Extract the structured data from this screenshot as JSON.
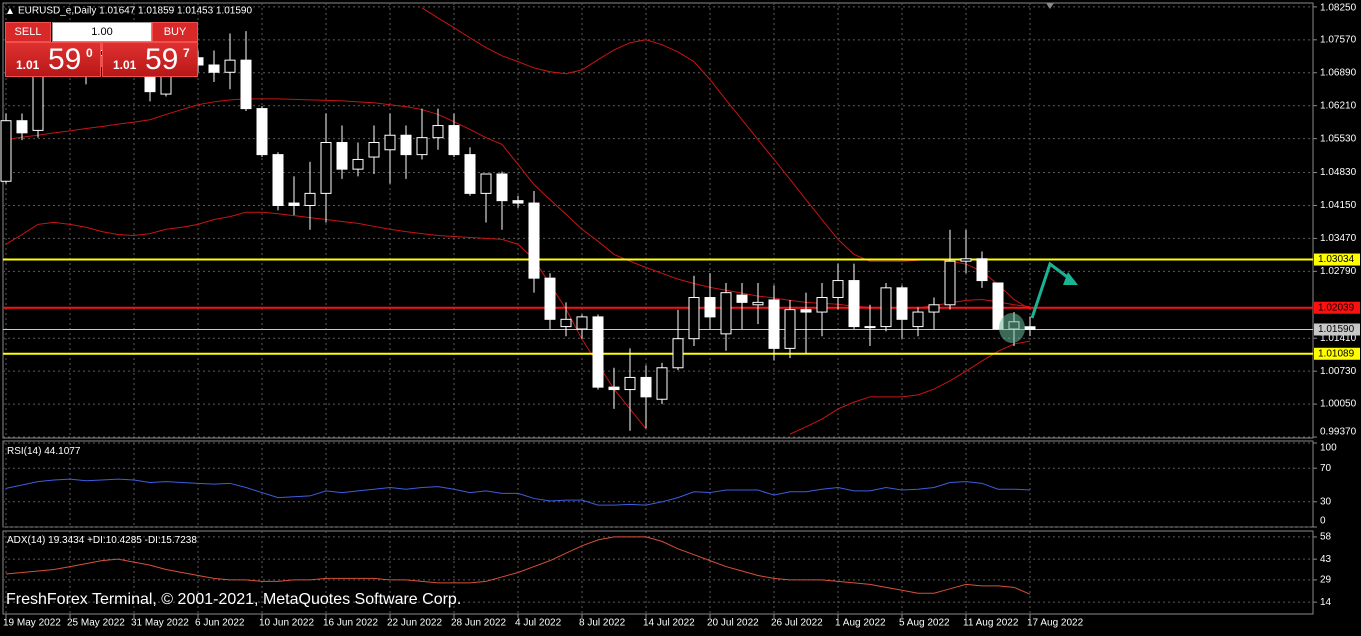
{
  "chart_data": [
    {
      "type": "candlestick",
      "title": "EURUSD_e,Daily 1.01647 1.01859 1.01453 1.01590",
      "categories": [
        "19 May 2022",
        null,
        null,
        null,
        "25 May 2022",
        null,
        null,
        null,
        "31 May 2022",
        null,
        null,
        null,
        "6 Jun 2022",
        null,
        null,
        null,
        "10 Jun 2022",
        null,
        null,
        null,
        "16 Jun 2022",
        null,
        null,
        null,
        "22 Jun 2022",
        null,
        null,
        null,
        "28 Jun 2022",
        null,
        null,
        null,
        "4 Jul 2022",
        null,
        null,
        null,
        "8 Jul 2022",
        null,
        null,
        null,
        "14 Jul 2022",
        null,
        null,
        null,
        "20 Jul 2022",
        null,
        null,
        null,
        "26 Jul 2022",
        null,
        null,
        null,
        "1 Aug 2022",
        null,
        null,
        null,
        "5 Aug 2022",
        null,
        null,
        null,
        "11 Aug 2022",
        null,
        null,
        null,
        "17 Aug 2022"
      ],
      "open": [
        1.0465,
        1.059,
        1.057,
        1.069,
        1.0735,
        1.0685,
        1.0725,
        1.0735,
        1.0775,
        1.0735,
        1.0645,
        1.0745,
        1.072,
        1.0705,
        1.069,
        1.0715,
        1.0615,
        1.052,
        1.042,
        1.0415,
        1.044,
        1.0545,
        1.049,
        1.0515,
        1.053,
        1.056,
        1.052,
        1.0555,
        1.058,
        1.052,
        1.044,
        1.048,
        1.0425,
        1.042,
        1.0265,
        1.0165,
        1.016,
        1.0185,
        1.004,
        1.0035,
        1.006,
        1.0015,
        1.008,
        1.014,
        1.0225,
        1.015,
        1.023,
        1.021,
        1.022,
        1.012,
        1.02,
        1.0195,
        1.0225,
        1.026,
        1.0165,
        1.0165,
        1.0245,
        1.0165,
        1.0195,
        1.021,
        1.03,
        1.0305,
        1.0255,
        1.016,
        1.01647
      ],
      "high": [
        1.0605,
        1.0605,
        1.07,
        1.075,
        1.0765,
        1.0735,
        1.0765,
        1.0785,
        1.0785,
        1.074,
        1.075,
        1.0765,
        1.0735,
        1.0735,
        1.077,
        1.0775,
        1.062,
        1.0525,
        1.0475,
        1.0505,
        1.0605,
        1.058,
        1.0545,
        1.058,
        1.0605,
        1.058,
        1.0615,
        1.0615,
        1.0605,
        1.0535,
        1.048,
        1.0485,
        1.0435,
        1.0445,
        1.0275,
        1.0215,
        1.019,
        1.019,
        1.008,
        1.012,
        1.0085,
        1.009,
        1.02,
        1.027,
        1.0275,
        1.0255,
        1.0255,
        1.0255,
        1.025,
        1.022,
        1.0235,
        1.0255,
        1.0295,
        1.0295,
        1.021,
        1.0255,
        1.025,
        1.0205,
        1.0225,
        1.0365,
        1.0365,
        1.032,
        1.0255,
        1.0195,
        1.01859
      ],
      "low": [
        1.046,
        1.055,
        1.0555,
        1.068,
        1.068,
        1.0665,
        1.07,
        1.072,
        1.068,
        1.063,
        1.064,
        1.071,
        1.069,
        1.067,
        1.0655,
        1.061,
        1.0515,
        1.0405,
        1.0395,
        1.0365,
        1.038,
        1.047,
        1.0475,
        1.048,
        1.046,
        1.047,
        1.051,
        1.053,
        1.0515,
        1.0435,
        1.038,
        1.0365,
        1.041,
        1.0235,
        1.016,
        1.0145,
        1.014,
        1.0035,
        0.9995,
        0.995,
        0.9955,
        1.0005,
        1.0075,
        1.0125,
        1.016,
        1.0115,
        1.016,
        1.017,
        1.0095,
        1.01,
        1.011,
        1.0145,
        1.02,
        1.016,
        1.0125,
        1.0155,
        1.014,
        1.0145,
        1.016,
        1.02,
        1.0275,
        1.0245,
        1.016,
        1.0125,
        1.01453
      ],
      "close": [
        1.059,
        1.0565,
        1.069,
        1.0735,
        1.0685,
        1.0725,
        1.0735,
        1.0775,
        1.0735,
        1.065,
        1.0745,
        1.072,
        1.0705,
        1.069,
        1.0715,
        1.0615,
        1.052,
        1.0415,
        1.0415,
        1.044,
        1.0545,
        1.049,
        1.051,
        1.0545,
        1.056,
        1.052,
        1.0555,
        1.058,
        1.052,
        1.044,
        1.048,
        1.0425,
        1.042,
        1.0265,
        1.018,
        1.018,
        1.0185,
        1.004,
        1.0035,
        1.006,
        1.002,
        1.008,
        1.014,
        1.0225,
        1.0185,
        1.0235,
        1.0215,
        1.0215,
        1.012,
        1.02,
        1.0195,
        1.0225,
        1.026,
        1.0165,
        1.0165,
        1.0245,
        1.018,
        1.0195,
        1.021,
        1.03,
        1.0305,
        1.026,
        1.016,
        1.0175,
        1.0159
      ],
      "up_color": "#000000",
      "down_color": "#ffffff",
      "line_color": "#ffffff",
      "lines": [
        {
          "color": "#c81414",
          "values": [
            null,
            null,
            null,
            null,
            null,
            null,
            null,
            null,
            null,
            null,
            null,
            null,
            null,
            null,
            null,
            null,
            null,
            null,
            null,
            null,
            null,
            null,
            null,
            null,
            null,
            null,
            1.0823,
            1.0802,
            1.0782,
            1.0761,
            1.0741,
            1.0724,
            1.0712,
            1.0699,
            1.0691,
            1.0687,
            1.0695,
            1.0716,
            1.0736,
            1.0751,
            1.0757,
            1.0747,
            1.0732,
            1.0712,
            1.0675,
            1.0633,
            1.0592,
            1.0551,
            1.051,
            1.0469,
            1.0427,
            1.0386,
            1.0345,
            1.0314,
            1.03,
            1.03,
            1.03,
            1.0302,
            1.0304,
            1.03,
            1.0294,
            1.0279,
            1.0252,
            1.0221,
            1.0201
          ]
        },
        {
          "color": "#c81414",
          "values": [
            1.0551,
            1.0556,
            1.056,
            1.0565,
            1.0569,
            1.0574,
            1.0578,
            1.0583,
            1.0587,
            1.0592,
            1.0603,
            1.0613,
            1.0623,
            1.0629,
            1.0633,
            1.0635,
            1.0635,
            1.0635,
            1.0634,
            1.0633,
            1.0632,
            1.0631,
            1.0629,
            1.0627,
            1.0623,
            1.0619,
            1.0613,
            1.0603,
            1.0588,
            1.0572,
            1.0555,
            1.0541,
            1.05,
            1.0458,
            1.0427,
            1.0397,
            1.0366,
            1.0341,
            1.0314,
            1.03,
            1.0287,
            1.0275,
            1.0263,
            1.0254,
            1.0246,
            1.024,
            1.0234,
            1.0228,
            1.0224,
            1.0219,
            1.0215,
            1.0213,
            1.0211,
            1.0207,
            1.0205,
            1.0203,
            1.0203,
            1.0204,
            1.0208,
            1.0214,
            1.0219,
            1.0221,
            1.0216,
            1.021,
            1.0206
          ]
        },
        {
          "color": "#c81414",
          "values": [
            1.0335,
            1.0355,
            1.0376,
            1.038,
            1.0376,
            1.037,
            1.0361,
            1.0355,
            1.0353,
            1.0357,
            1.0366,
            1.037,
            1.0376,
            1.0386,
            1.0392,
            1.0401,
            1.0401,
            1.0398,
            1.0394,
            1.039,
            1.0386,
            1.0382,
            1.0378,
            1.0372,
            1.0366,
            1.0361,
            1.0357,
            1.0353,
            1.0351,
            1.0349,
            1.0347,
            1.0345,
            1.0335,
            1.0304,
            1.0252,
            1.0201,
            1.0139,
            1.0087,
            1.0036,
            0.9995,
            0.9954,
            null,
            null,
            null,
            null,
            null,
            null,
            null,
            null,
            0.9943,
            0.9958,
            0.9974,
            0.9995,
            1.0009,
            1.002,
            1.002,
            1.002,
            1.0024,
            1.0036,
            1.0053,
            1.0073,
            1.0094,
            1.0114,
            1.0129,
            1.0135
          ]
        }
      ],
      "hlines": [
        {
          "value": 1.03034,
          "color": "#ffff00"
        },
        {
          "value": 1.02039,
          "color": "#ff1010"
        },
        {
          "value": 1.0159,
          "label": "1.01590",
          "color": "#c8c8c8"
        },
        {
          "value": 1.01089,
          "color": "#ffff00"
        }
      ],
      "ylim": [
        0.9935,
        1.0833
      ],
      "yticks": [
        {
          "value": 1.0825,
          "label": "1.08250"
        },
        {
          "value": 1.0757,
          "label": "1.07570"
        },
        {
          "value": 1.0689,
          "label": "1.06890"
        },
        {
          "value": 1.0621,
          "label": "1.06210"
        },
        {
          "value": 1.0553,
          "label": "1.05530"
        },
        {
          "value": 1.0483,
          "label": "1.04830"
        },
        {
          "value": 1.0415,
          "label": "1.04150"
        },
        {
          "value": 1.0347,
          "label": "1.03470"
        },
        {
          "value": 1.0279,
          "label": "1.02790"
        },
        {
          "value": 1.0141,
          "label": "1.01410"
        },
        {
          "value": 1.0073,
          "label": "1.00730"
        },
        {
          "value": 1.0005,
          "label": "1.00050"
        },
        {
          "value": 0.9937,
          "label": "0.99370"
        }
      ],
      "grid": true
    },
    {
      "type": "line",
      "title": "RSI(14)",
      "color": "#3d5ee0",
      "values": [
        46,
        50,
        54,
        56,
        57,
        55,
        56,
        57,
        56,
        53,
        54,
        53,
        52,
        51,
        52,
        47,
        41,
        35,
        36,
        37,
        43,
        41,
        43,
        45,
        47,
        45,
        47,
        48,
        45,
        41,
        43,
        40,
        40,
        34,
        31,
        32,
        32,
        26,
        26,
        27,
        26,
        30,
        35,
        42,
        41,
        44,
        44,
        44,
        38,
        42,
        42,
        45,
        47,
        43,
        43,
        47,
        44,
        45,
        47,
        53,
        54,
        52,
        45,
        45,
        44.1077
      ],
      "ylim": [
        0,
        100
      ],
      "yticks": [
        0,
        30,
        70,
        100
      ],
      "grid": true
    },
    {
      "type": "line",
      "title": "ADX(14)",
      "subtitle": "+DI:10.4285 -DI:15.7238",
      "color": "#d8503a",
      "values": [
        33,
        34,
        35,
        36,
        38,
        40,
        42,
        43,
        41,
        39,
        36,
        34,
        32,
        30,
        29,
        29,
        28,
        28,
        29,
        29,
        30,
        30,
        30,
        30,
        29,
        29,
        28,
        27,
        27,
        27,
        28,
        31,
        34,
        38,
        42,
        47,
        52,
        56,
        58,
        58,
        58,
        55,
        50,
        46,
        42,
        38,
        35,
        32,
        30,
        29,
        29,
        29,
        28,
        27,
        26,
        24,
        22,
        20,
        20,
        23,
        26,
        25,
        25,
        24,
        19.3434
      ],
      "ylim": [
        6,
        62
      ],
      "yticks": [
        14,
        29,
        43,
        58
      ],
      "grid": true
    }
  ],
  "trade_panel": {
    "sell": "SELL",
    "buy": "BUY",
    "lot": "1.00",
    "bid": {
      "prefix": "1.01",
      "pips": "59",
      "fraction": "0"
    },
    "ask": {
      "prefix": "1.01",
      "pips": "59",
      "fraction": "7"
    }
  },
  "copyright": "FreshForex Terminal, © 2001-2021, MetaQuotes Software Corp."
}
